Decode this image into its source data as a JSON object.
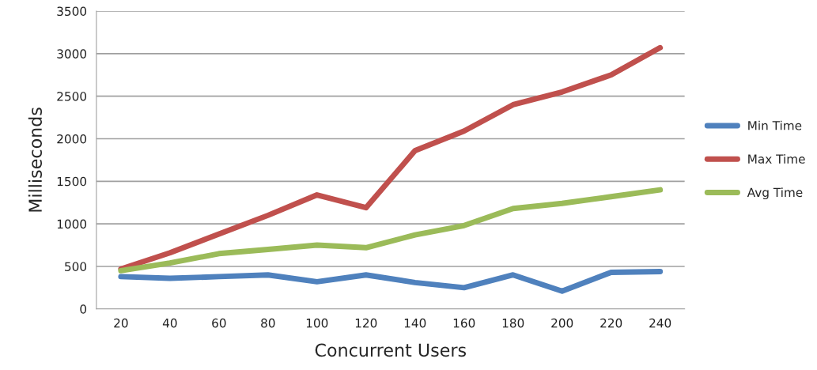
{
  "chart_data": {
    "type": "line",
    "xlabel": "Concurrent Users",
    "ylabel": "Milliseconds",
    "categories": [
      "20",
      "40",
      "60",
      "80",
      "100",
      "120",
      "140",
      "160",
      "180",
      "200",
      "220",
      "240"
    ],
    "series": [
      {
        "name": "Min Time",
        "color": "#4f81bd",
        "values": [
          380,
          360,
          380,
          400,
          320,
          400,
          310,
          250,
          400,
          210,
          430,
          440
        ]
      },
      {
        "name": "Max Time",
        "color": "#c0504d",
        "values": [
          470,
          660,
          880,
          1100,
          1340,
          1190,
          1860,
          2090,
          2400,
          2550,
          2750,
          3070
        ]
      },
      {
        "name": "Avg Time",
        "color": "#9bbb59",
        "values": [
          450,
          540,
          650,
          700,
          750,
          720,
          870,
          980,
          1180,
          1240,
          1320,
          1400
        ]
      }
    ],
    "ylim": [
      0,
      3500
    ],
    "yticks": [
      0,
      500,
      1000,
      1500,
      2000,
      2500,
      3000,
      3500
    ],
    "grid": "y",
    "legend": "right",
    "marker": "none",
    "line_style": "solid"
  }
}
